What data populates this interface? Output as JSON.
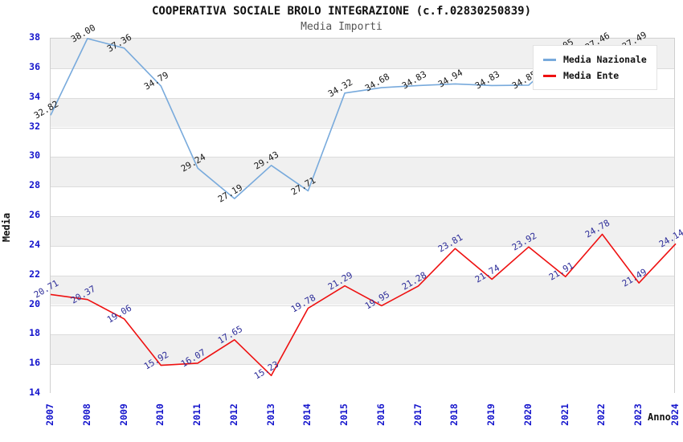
{
  "title": "COOPERATIVA SOCIALE BROLO INTEGRAZIONE (c.f.02830250839)",
  "subtitle": "Media Importi",
  "axes": {
    "x_label": "Anno",
    "y_label": "Media",
    "tick_color": "#1414cc",
    "x_ticks": [
      "2007",
      "2008",
      "2009",
      "2010",
      "2011",
      "2012",
      "2013",
      "2014",
      "2015",
      "2016",
      "2017",
      "2018",
      "2019",
      "2020",
      "2021",
      "2022",
      "2023",
      "2024"
    ],
    "y_ticks": [
      14,
      16,
      18,
      20,
      22,
      24,
      26,
      28,
      30,
      32,
      34,
      36,
      38
    ]
  },
  "legend": {
    "position": "top-right",
    "items": [
      {
        "label": "Media Nazionale",
        "color": "#78aadc"
      },
      {
        "label": "Media Ente",
        "color": "#ee1111"
      }
    ]
  },
  "chart_data": {
    "type": "line",
    "title": "COOPERATIVA SOCIALE BROLO INTEGRAZIONE (c.f.02830250839)",
    "subtitle": "Media Importi",
    "xlabel": "Anno",
    "ylabel": "Media",
    "x": [
      2007,
      2008,
      2009,
      2010,
      2011,
      2012,
      2013,
      2014,
      2015,
      2016,
      2017,
      2018,
      2019,
      2020,
      2021,
      2022,
      2023,
      2024
    ],
    "ylim": [
      14,
      38
    ],
    "ytick_step": 2,
    "grid": "alternating-horizontal-bands",
    "band_colors": [
      "#f0f0f0",
      "#ffffff"
    ],
    "legend_position": "top-right-overlapping-plot",
    "series": [
      {
        "name": "Media Nazionale",
        "color": "#78aadc",
        "label_color": "#1a1a1a",
        "values": [
          32.82,
          38.0,
          37.36,
          34.79,
          29.24,
          27.19,
          29.43,
          27.71,
          34.32,
          34.68,
          34.83,
          34.94,
          34.83,
          34.85,
          37.05,
          37.46,
          37.49,
          null
        ]
      },
      {
        "name": "Media Ente",
        "color": "#ee1111",
        "label_color": "#2d2d99",
        "values": [
          20.71,
          20.37,
          19.06,
          15.92,
          16.07,
          17.65,
          15.23,
          19.78,
          21.29,
          19.95,
          21.28,
          23.81,
          21.74,
          23.92,
          21.91,
          24.78,
          21.49,
          24.14
        ]
      }
    ]
  }
}
